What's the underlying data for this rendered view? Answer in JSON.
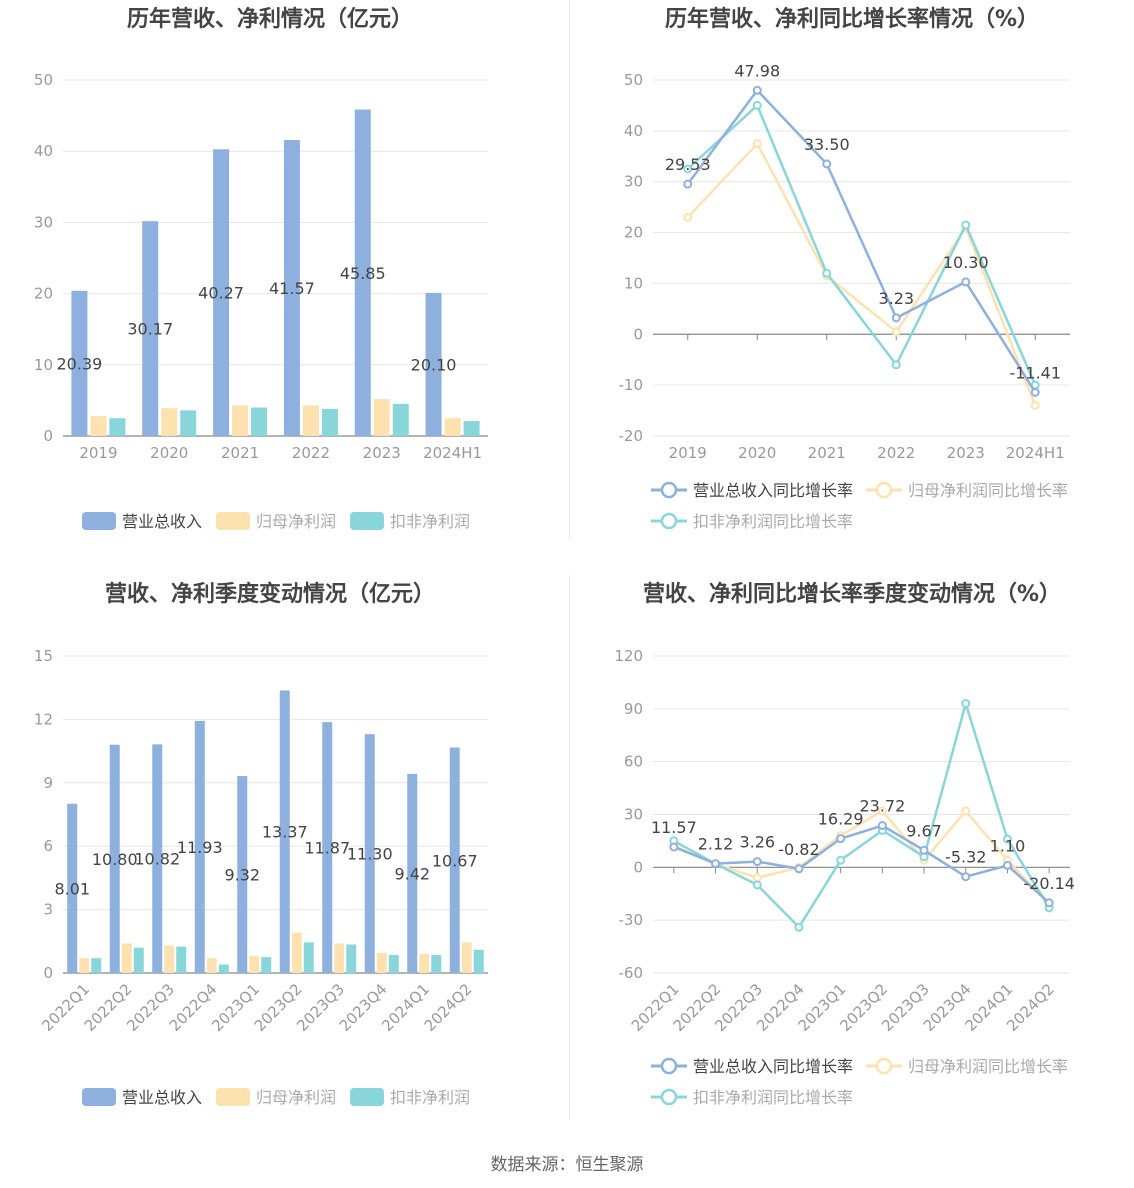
{
  "source_text": "数据来源：恒生聚源",
  "colors": {
    "revenue": "#8eb0de",
    "net_profit": "#fde2b0",
    "deducted_profit": "#88d6da",
    "grid": "#e6e6e6",
    "axis": "#999999",
    "title": "#444444",
    "label": "#444444"
  },
  "chart_data": [
    {
      "type": "bar",
      "title": "历年营收、净利情况（亿元）",
      "categories": [
        "2019",
        "2020",
        "2021",
        "2022",
        "2023",
        "2024H1"
      ],
      "ylim": [
        0,
        50
      ],
      "yticks": [
        0,
        10,
        20,
        30,
        40,
        50
      ],
      "grid": true,
      "legend": "bottom",
      "series": [
        {
          "name": "营业总收入",
          "color": "#8eb0de",
          "values": [
            20.39,
            30.17,
            40.27,
            41.57,
            45.85,
            20.1
          ],
          "labels": [
            "20.39",
            "30.17",
            "40.27",
            "41.57",
            "45.85",
            "20.10"
          ]
        },
        {
          "name": "归母净利润",
          "color": "#fde2b0",
          "values": [
            2.8,
            3.9,
            4.3,
            4.3,
            5.2,
            2.5
          ]
        },
        {
          "name": "扣非净利润",
          "color": "#88d6da",
          "values": [
            2.5,
            3.6,
            4.0,
            3.8,
            4.5,
            2.1
          ]
        }
      ]
    },
    {
      "type": "line",
      "title": "历年营收、净利同比增长率情况（%）",
      "categories": [
        "2019",
        "2020",
        "2021",
        "2022",
        "2023",
        "2024H1"
      ],
      "ylim": [
        -20,
        50
      ],
      "yticks": [
        -20,
        -10,
        0,
        10,
        20,
        30,
        40,
        50
      ],
      "grid": true,
      "legend": "bottom",
      "series": [
        {
          "name": "营业总收入同比增长率",
          "color": "#8eb0de",
          "values": [
            29.53,
            47.98,
            33.5,
            3.23,
            10.3,
            -11.41
          ],
          "labels": [
            "29.53",
            "47.98",
            "33.50",
            "3.23",
            "10.30",
            "-11.41"
          ]
        },
        {
          "name": "归母净利润同比增长率",
          "color": "#fde2b0",
          "values": [
            23.0,
            37.5,
            11.5,
            0.5,
            21.0,
            -14.0
          ]
        },
        {
          "name": "扣非净利润同比增长率",
          "color": "#88d6da",
          "values": [
            32.5,
            45.0,
            12.0,
            -6.0,
            21.5,
            -10.0
          ]
        }
      ]
    },
    {
      "type": "bar",
      "title": "营收、净利季度变动情况（亿元）",
      "categories": [
        "2022Q1",
        "2022Q2",
        "2022Q3",
        "2022Q4",
        "2023Q1",
        "2023Q2",
        "2023Q3",
        "2023Q4",
        "2024Q1",
        "2024Q2"
      ],
      "ylim": [
        0,
        15
      ],
      "yticks": [
        0,
        3,
        6,
        9,
        12,
        15
      ],
      "grid": true,
      "legend": "bottom",
      "rotate_x_labels": true,
      "series": [
        {
          "name": "营业总收入",
          "color": "#8eb0de",
          "values": [
            8.01,
            10.8,
            10.82,
            11.93,
            9.32,
            13.37,
            11.87,
            11.3,
            9.42,
            10.67
          ],
          "labels": [
            "8.01",
            "10.80",
            "10.82",
            "11.93",
            "9.32",
            "13.37",
            "11.87",
            "11.30",
            "9.42",
            "10.67"
          ]
        },
        {
          "name": "归母净利润",
          "color": "#fde2b0",
          "values": [
            0.7,
            1.4,
            1.3,
            0.7,
            0.8,
            1.9,
            1.4,
            0.95,
            0.9,
            1.45
          ]
        },
        {
          "name": "扣非净利润",
          "color": "#88d6da",
          "values": [
            0.7,
            1.2,
            1.25,
            0.4,
            0.75,
            1.45,
            1.35,
            0.85,
            0.85,
            1.1
          ]
        }
      ]
    },
    {
      "type": "line",
      "title": "营收、净利同比增长率季度变动情况（%）",
      "categories": [
        "2022Q1",
        "2022Q2",
        "2022Q3",
        "2022Q4",
        "2023Q1",
        "2023Q2",
        "2023Q3",
        "2023Q4",
        "2024Q1",
        "2024Q2"
      ],
      "ylim": [
        -60,
        120
      ],
      "yticks": [
        -60,
        -30,
        0,
        30,
        60,
        90,
        120
      ],
      "grid": true,
      "legend": "bottom",
      "rotate_x_labels": true,
      "series": [
        {
          "name": "营业总收入同比增长率",
          "color": "#8eb0de",
          "values": [
            11.57,
            2.12,
            3.26,
            -0.82,
            16.29,
            23.72,
            9.67,
            -5.32,
            1.1,
            -20.14
          ],
          "labels": [
            "11.57",
            "2.12",
            "3.26",
            "-0.82",
            "16.29",
            "23.72",
            "9.67",
            "-5.32",
            "1.10",
            "-20.14"
          ]
        },
        {
          "name": "归母净利润同比增长率",
          "color": "#fde2b0",
          "values": [
            12.0,
            2.0,
            -6.0,
            0.0,
            18.0,
            32.0,
            4.0,
            32.0,
            4.0,
            -21.0
          ]
        },
        {
          "name": "扣非净利润同比增长率",
          "color": "#88d6da",
          "values": [
            15.0,
            2.0,
            -10.0,
            -34.0,
            4.0,
            21.0,
            6.0,
            93.0,
            16.0,
            -23.0
          ]
        }
      ]
    }
  ]
}
